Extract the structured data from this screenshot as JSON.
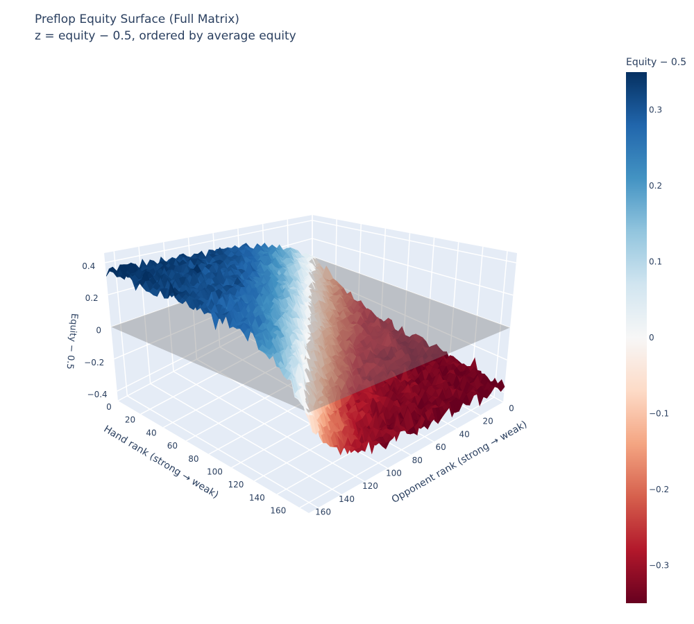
{
  "chart_data": {
    "type": "surface",
    "title": "Preflop Equity Surface (Full Matrix)",
    "subtitle": "z = equity − 0.5, ordered by average equity",
    "xaxis": {
      "title": "Hand rank (strong → weak)",
      "ticks": [
        0,
        20,
        40,
        60,
        80,
        100,
        120,
        140,
        160
      ],
      "range": [
        0,
        168
      ]
    },
    "yaxis": {
      "title": "Opponent rank (strong → weak)",
      "ticks": [
        0,
        20,
        40,
        60,
        80,
        100,
        120,
        140,
        160
      ],
      "range": [
        0,
        168
      ]
    },
    "zaxis": {
      "title": "Equity − 0.5",
      "ticks": [
        -0.4,
        -0.2,
        0,
        0.2,
        0.4
      ],
      "tick_labels": [
        "−0.4",
        "−0.2",
        "0",
        "0.2",
        "0.4"
      ],
      "range": [
        -0.46,
        0.46
      ]
    },
    "surface_summary": {
      "strong_hand_vs_weak_opponent": 0.35,
      "weak_hand_vs_strong_opponent": -0.35,
      "diagonal": 0
    },
    "reference_plane": {
      "z": 0,
      "color": "#808080"
    },
    "colorbar": {
      "title": "Equity − 0.5",
      "cmin": -0.35,
      "cmax": 0.35,
      "ticks": [
        0.3,
        0.2,
        0.1,
        0,
        -0.1,
        -0.2,
        -0.3
      ],
      "tick_labels": [
        "0.3",
        "0.2",
        "0.1",
        "0",
        "−0.1",
        "−0.2",
        "−0.3"
      ]
    },
    "colorscale": [
      "#67001f",
      "#b2182b",
      "#d6604d",
      "#f4a582",
      "#fddbc7",
      "#f7f7f7",
      "#d1e5f0",
      "#92c5de",
      "#4393c3",
      "#2166ac",
      "#053061"
    ],
    "scene_bgcolor": "#e5ecf6",
    "grid": true
  }
}
